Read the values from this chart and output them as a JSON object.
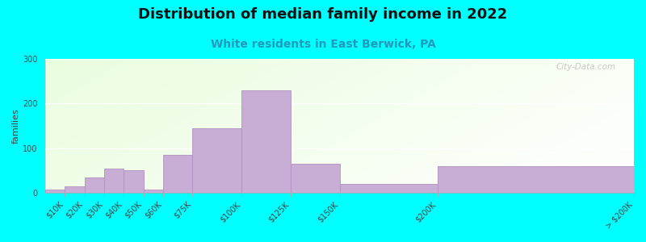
{
  "title": "Distribution of median family income in 2022",
  "subtitle": "White residents in East Berwick, PA",
  "ylabel": "families",
  "background_outer": "#00FFFF",
  "bar_color": "#c8aed4",
  "bar_edge_color": "#b090c0",
  "watermark": "City-Data.com",
  "title_fontsize": 13,
  "subtitle_fontsize": 10,
  "ylabel_fontsize": 8,
  "tick_fontsize": 7,
  "ylim": [
    0,
    300
  ],
  "yticks": [
    0,
    100,
    200,
    300
  ],
  "bin_edges": [
    0,
    10,
    20,
    30,
    40,
    50,
    60,
    75,
    100,
    125,
    150,
    200,
    300
  ],
  "values": [
    8,
    15,
    35,
    55,
    50,
    8,
    85,
    145,
    230,
    65,
    20,
    60
  ],
  "tick_labels": [
    "$10K",
    "$20K",
    "$30K",
    "$40K",
    "$50K",
    "$60K",
    "$75K",
    "$100K",
    "$125K",
    "$150K",
    "$200K",
    "> $200K"
  ]
}
